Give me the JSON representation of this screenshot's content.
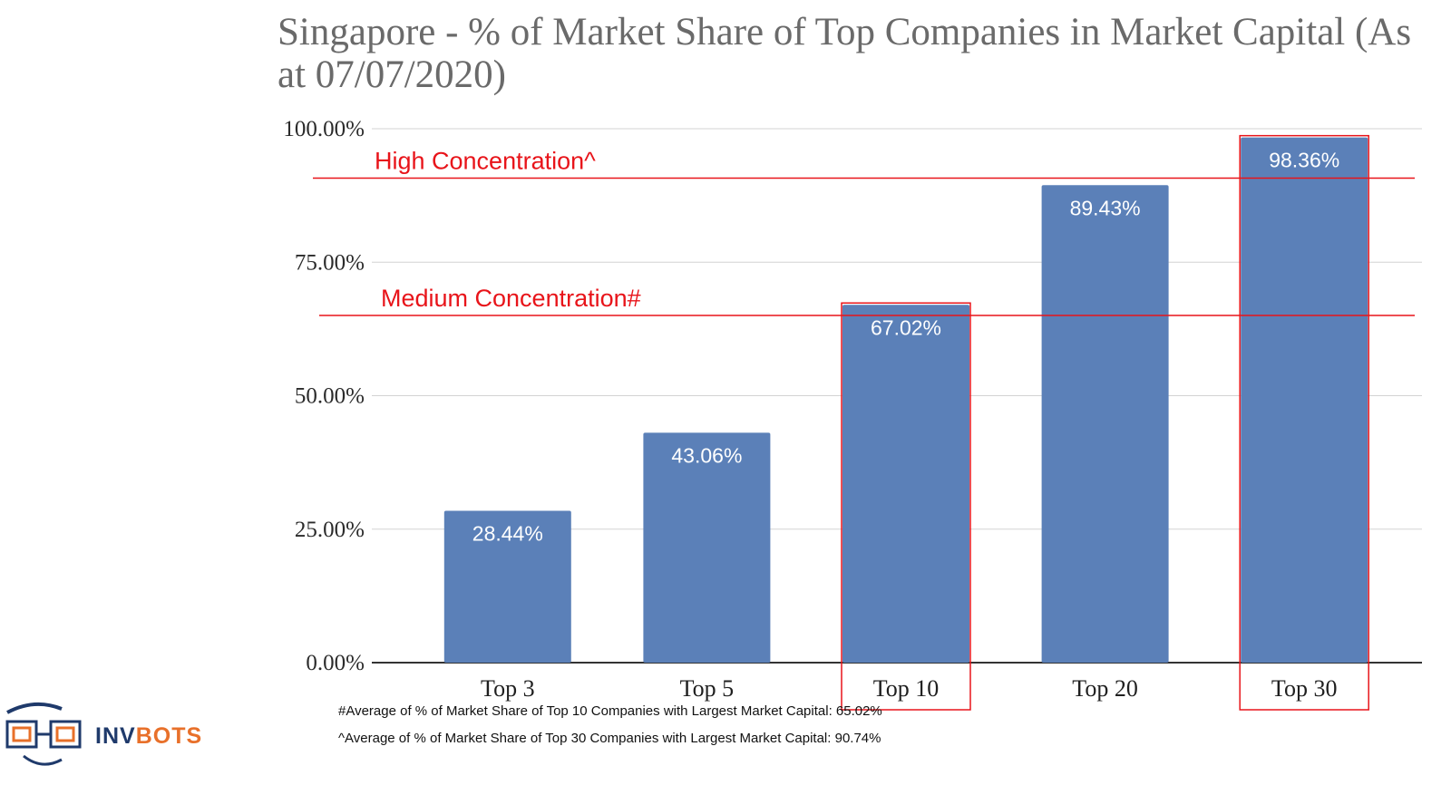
{
  "chart_data": {
    "type": "bar",
    "title": "Singapore - % of Market Share of Top Companies in Market Capital (As at 07/07/2020)",
    "categories": [
      "Top 3",
      "Top 5",
      "Top 10",
      "Top 20",
      "Top 30"
    ],
    "values": [
      28.44,
      43.06,
      67.02,
      89.43,
      98.36
    ],
    "data_labels": [
      "28.44%",
      "43.06%",
      "67.02%",
      "89.43%",
      "98.36%"
    ],
    "ylim": [
      0,
      100
    ],
    "yticks": [
      0,
      25,
      50,
      75,
      100
    ],
    "ytick_labels": [
      "0.00%",
      "25.00%",
      "50.00%",
      "75.00%",
      "100.00%"
    ],
    "xlabel": "",
    "ylabel": "",
    "grid": true,
    "bar_color": "#5b80b8",
    "highlighted_categories": [
      "Top 10",
      "Top 30"
    ],
    "reference_lines": [
      {
        "label": "High Concentration^",
        "value": 90.74
      },
      {
        "label": "Medium Concentration#",
        "value": 65.02
      }
    ],
    "annotation_color": "#e8141a"
  },
  "footnotes": [
    "#Average of % of Market Share of Top 10 Companies with Largest Market Capital: 65.02%",
    "^Average of % of Market Share of Top 30 Companies with Largest Market Capital: 90.74%"
  ],
  "logo": {
    "text_a": "INV",
    "text_b": "BOTS",
    "color_a": "#1f3a6b",
    "color_b": "#e8702a"
  }
}
